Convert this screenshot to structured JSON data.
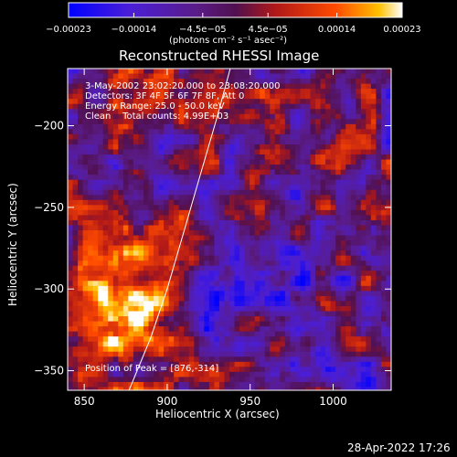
{
  "chart_data": {
    "type": "heatmap",
    "title": "Reconstructed RHESSI Image",
    "xlabel": "Heliocentric X (arcsec)",
    "ylabel": "Heliocentric Y (arcsec)",
    "xlim": [
      840,
      1035
    ],
    "ylim": [
      -362,
      -165
    ],
    "x_ticks": [
      850,
      900,
      950,
      1000
    ],
    "y_ticks": [
      -200,
      -250,
      -300,
      -350
    ],
    "x_tick_labels": [
      "850",
      "900",
      "950",
      "1000"
    ],
    "y_tick_labels": [
      "−200",
      "−250",
      "−300",
      "−350"
    ],
    "colorbar": {
      "range": [
        -0.00023,
        0.00023
      ],
      "ticks": [
        -0.00023,
        -0.00014,
        -4.5e-05,
        4.5e-05,
        0.00014,
        0.00023
      ],
      "tick_labels": [
        "−0.00023",
        "−0.00014",
        "−4.5e−05",
        "4.5e−05",
        "0.00014",
        "0.00023"
      ],
      "units": "(photons cm⁻² s⁻¹ asec⁻²)",
      "colors": [
        "#0000ff",
        "#5a1ee6",
        "#7a2aa0",
        "#a81a1a",
        "#ff3c00",
        "#ffaa00",
        "#ffffff"
      ]
    },
    "info_lines": [
      "3-May-2002 23:02:20.000 to 23:08:20.000",
      "Detectors: 3F 4F 5F 6F 7F 8F, Att 0",
      "Energy Range: 25.0 - 50.0 keV",
      "Clean    Total counts: 4.99E+03"
    ],
    "peak_label": "Position of Peak = [876,-314]",
    "limb_curve": [
      [
        877,
        -362
      ],
      [
        890,
        -330
      ],
      [
        900,
        -300
      ],
      [
        910,
        -265
      ],
      [
        920,
        -230
      ],
      [
        930,
        -195
      ],
      [
        938,
        -165
      ]
    ]
  },
  "footer": {
    "timestamp": "28-Apr-2022 17:26"
  }
}
